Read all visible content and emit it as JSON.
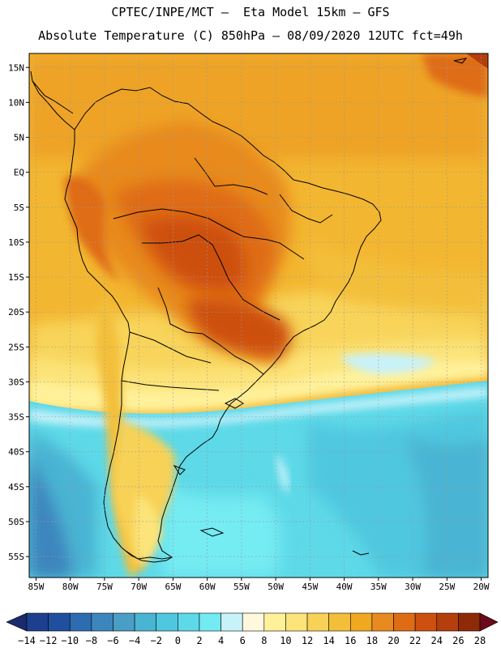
{
  "header": {
    "line1": "CPTEC/INPE/MCT –  Eta Model 15km – GFS",
    "line2": "Absolute Temperature (C) 850hPa – 08/09/2020 12UTC fct=49h"
  },
  "map": {
    "lat_labels": [
      "15N",
      "10N",
      "5N",
      "EQ",
      "5S",
      "10S",
      "15S",
      "20S",
      "25S",
      "30S",
      "35S",
      "40S",
      "45S",
      "50S",
      "55S"
    ],
    "lon_labels": [
      "85W",
      "80W",
      "75W",
      "70W",
      "65W",
      "60W",
      "55W",
      "50W",
      "45W",
      "40W",
      "35W",
      "30W",
      "25W",
      "20W"
    ],
    "lat_range": [
      -58,
      17
    ],
    "lon_range": [
      -86,
      -19
    ],
    "grid": "dotted"
  },
  "colorbar": {
    "labels": [
      "-14",
      "-12",
      "-10",
      "-8",
      "-6",
      "-4",
      "-2",
      "0",
      "2",
      "4",
      "6",
      "8",
      "10",
      "12",
      "14",
      "16",
      "18",
      "20",
      "22",
      "24",
      "26",
      "28"
    ],
    "colors": [
      "#1c3f8f",
      "#1f4f9e",
      "#2d6cb0",
      "#3d85bd",
      "#4a9ec6",
      "#4ab4d3",
      "#4fc7df",
      "#5dd9e8",
      "#74ebf2",
      "#c8f2fa",
      "#fff8dc",
      "#fff19a",
      "#fce47a",
      "#f8d257",
      "#f3bf3a",
      "#f0a820",
      "#e88a1f",
      "#df6c14",
      "#cd5010",
      "#b53e0d",
      "#8f2a09"
    ],
    "left_arrow": "#1a2a6c",
    "right_arrow": "#6a0a1a"
  }
}
